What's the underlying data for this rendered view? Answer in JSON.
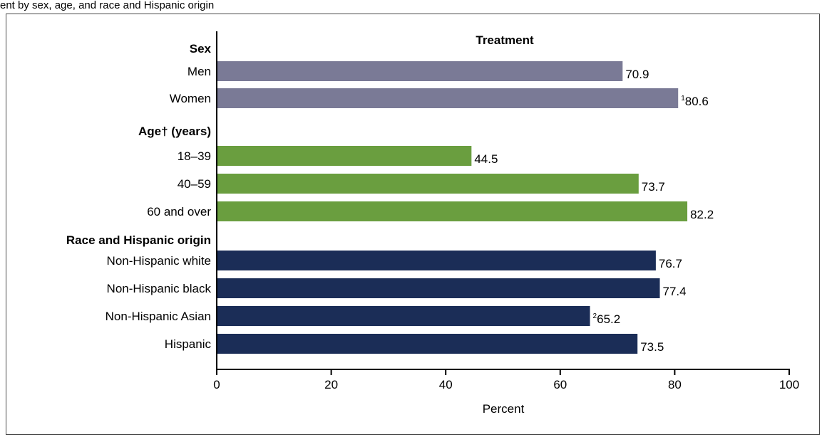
{
  "page": {
    "top_note": "ent by sex, age, and race and Hispanic origin"
  },
  "chart_data": {
    "type": "bar",
    "orientation": "horizontal",
    "title": "Treatment",
    "xlabel": "Percent",
    "xlim": [
      0,
      100
    ],
    "xticks": [
      0,
      20,
      40,
      60,
      80,
      100
    ],
    "groups": [
      {
        "label": "Sex",
        "label_suffix": "",
        "color": "#7a7a96",
        "bars": [
          {
            "category": "Men",
            "value": 70.9,
            "label": "70.9",
            "note": ""
          },
          {
            "category": "Women",
            "value": 80.6,
            "label": "80.6",
            "note": "1"
          }
        ]
      },
      {
        "label": "Age",
        "label_suffix": "† (years)",
        "color": "#6a9e3f",
        "bars": [
          {
            "category": "18–39",
            "value": 44.5,
            "label": "44.5",
            "note": ""
          },
          {
            "category": "40–59",
            "value": 73.7,
            "label": "73.7",
            "note": ""
          },
          {
            "category": "60 and over",
            "value": 82.2,
            "label": "82.2",
            "note": ""
          }
        ]
      },
      {
        "label": "Race and Hispanic origin",
        "label_suffix": "",
        "color": "#1b2d57",
        "bars": [
          {
            "category": "Non-Hispanic white",
            "value": 76.7,
            "label": "76.7",
            "note": ""
          },
          {
            "category": "Non-Hispanic black",
            "value": 77.4,
            "label": "77.4",
            "note": ""
          },
          {
            "category": "Non-Hispanic Asian",
            "value": 65.2,
            "label": "65.2",
            "note": "2"
          },
          {
            "category": "Hispanic",
            "value": 73.5,
            "label": "73.5",
            "note": ""
          }
        ]
      }
    ]
  }
}
